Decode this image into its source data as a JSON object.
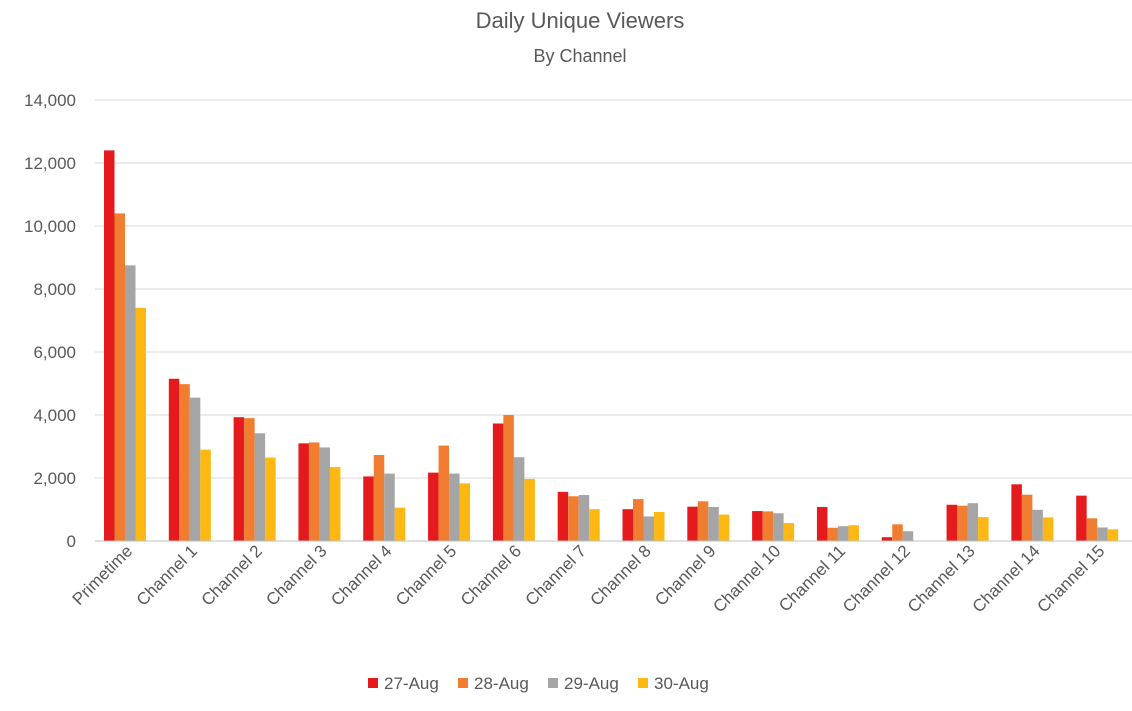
{
  "chart_data": {
    "type": "bar",
    "title": "Daily Unique Viewers",
    "subtitle": "By Channel",
    "xlabel": "",
    "ylabel": "",
    "ylim": [
      0,
      14000
    ],
    "yticks": [
      0,
      2000,
      4000,
      6000,
      8000,
      10000,
      12000,
      14000
    ],
    "ytick_labels": [
      "0",
      "2,000",
      "4,000",
      "6,000",
      "8,000",
      "10,000",
      "12,000",
      "14,000"
    ],
    "grid": true,
    "legend_position": "bottom",
    "categories": [
      "Primetime",
      "Channel 1",
      "Channel 2",
      "Channel 3",
      "Channel 4",
      "Channel 5",
      "Channel 6",
      "Channel 7",
      "Channel 8",
      "Channel 9",
      "Channel 10",
      "Channel 11",
      "Channel 12",
      "Channel 13",
      "Channel 14",
      "Channel 15"
    ],
    "series": [
      {
        "name": "27-Aug",
        "color": "#e41a1c",
        "values": [
          12400,
          5150,
          3930,
          3100,
          2050,
          2170,
          3730,
          1560,
          1010,
          1090,
          950,
          1080,
          120,
          1150,
          1800,
          1440
        ]
      },
      {
        "name": "28-Aug",
        "color": "#f07d30",
        "values": [
          10400,
          4980,
          3900,
          3130,
          2730,
          3030,
          4000,
          1420,
          1330,
          1260,
          940,
          420,
          530,
          1120,
          1470,
          720
        ]
      },
      {
        "name": "29-Aug",
        "color": "#a5a5a5",
        "values": [
          8750,
          4550,
          3420,
          2970,
          2140,
          2140,
          2660,
          1460,
          780,
          1080,
          880,
          470,
          310,
          1200,
          990,
          430
        ]
      },
      {
        "name": "30-Aug",
        "color": "#fdb813",
        "values": [
          7400,
          2900,
          2650,
          2350,
          1060,
          1830,
          1970,
          1010,
          920,
          840,
          570,
          500,
          0,
          760,
          750,
          370
        ]
      }
    ]
  }
}
